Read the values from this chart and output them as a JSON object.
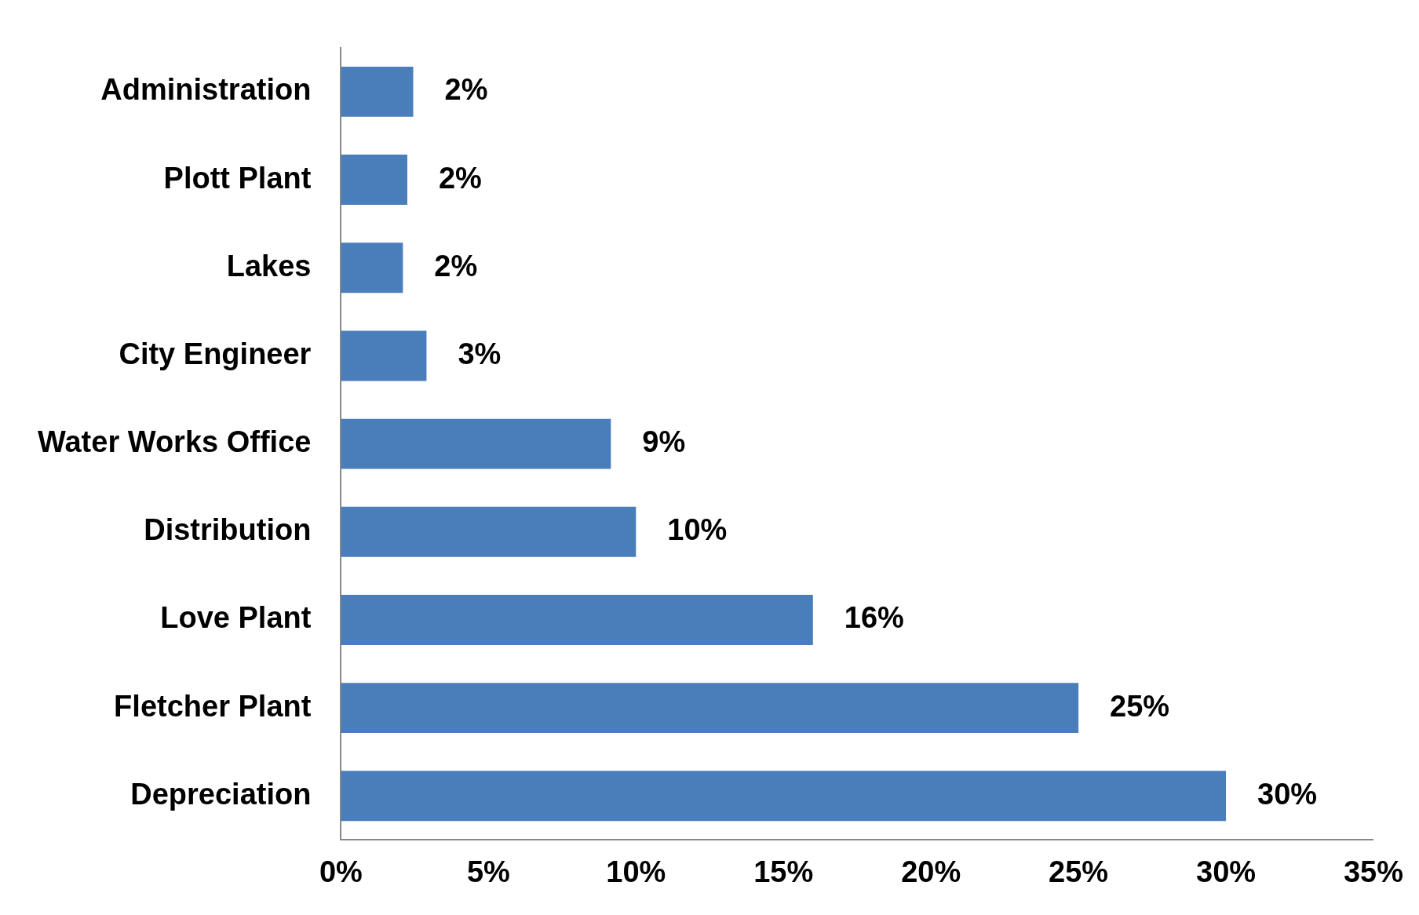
{
  "chart_data": {
    "type": "bar",
    "orientation": "horizontal",
    "categories": [
      "Administration",
      "Plott Plant",
      "Lakes",
      "City Engineer",
      "Water Works Office",
      "Distribution",
      "Love Plant",
      "Fletcher Plant",
      "Depreciation"
    ],
    "values": [
      2.45,
      2.25,
      2.1,
      2.9,
      9.15,
      10.0,
      16.0,
      25.0,
      30.0
    ],
    "value_labels": [
      "2%",
      "2%",
      "2%",
      "3%",
      "9%",
      "10%",
      "16%",
      "25%",
      "30%"
    ],
    "color": "#4a7ebb",
    "xlim": [
      0,
      35
    ],
    "xticks": [
      {
        "value": 0,
        "label": "0%"
      },
      {
        "value": 5,
        "label": "5%"
      },
      {
        "value": 10,
        "label": "10%"
      },
      {
        "value": 15,
        "label": "15%"
      },
      {
        "value": 20,
        "label": "20%"
      },
      {
        "value": 25,
        "label": "25%"
      },
      {
        "value": 30,
        "label": "30%"
      },
      {
        "value": 35,
        "label": "35%"
      }
    ],
    "grid": false,
    "legend": false
  }
}
